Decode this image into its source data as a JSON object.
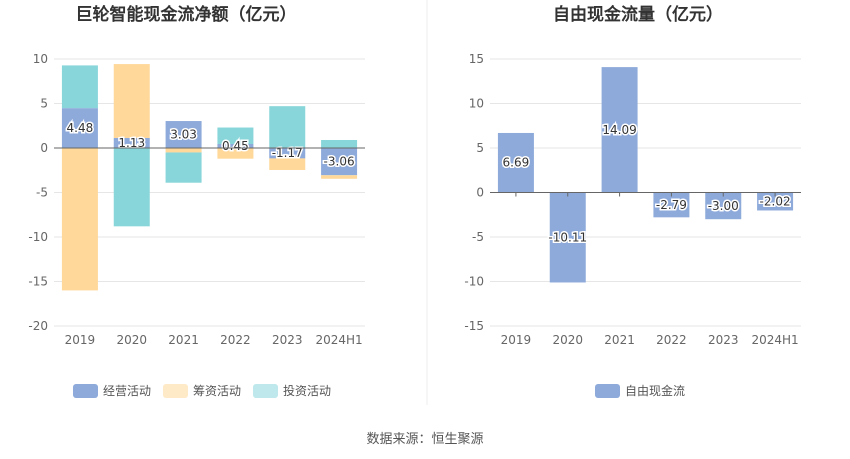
{
  "chart_data": [
    {
      "type": "bar",
      "stacked": true,
      "title": "巨轮智能现金流净额（亿元）",
      "categories": [
        "2019",
        "2020",
        "2021",
        "2022",
        "2023",
        "2024H1"
      ],
      "ylim": [
        -20,
        10
      ],
      "yticks": [
        10,
        5,
        0,
        -5,
        -10,
        -15,
        -20
      ],
      "grid": true,
      "legend_position": "bottom",
      "series": [
        {
          "name": "经营活动",
          "color": "#8eaadb",
          "values": [
            4.48,
            1.13,
            3.03,
            0.45,
            -1.17,
            -3.06
          ]
        },
        {
          "name": "筹资活动",
          "color": "#ffd89a",
          "values": [
            -16.0,
            8.3,
            -0.5,
            -1.2,
            -1.3,
            -0.4
          ]
        },
        {
          "name": "投资活动",
          "color": "#88d6da",
          "values": [
            4.8,
            -8.8,
            -3.4,
            1.85,
            4.7,
            0.9
          ]
        }
      ],
      "labels": [
        "4.48",
        "1.13",
        "3.03",
        "0.45",
        "-1.17",
        "-3.06"
      ]
    },
    {
      "type": "bar",
      "title": "自由现金流量（亿元）",
      "categories": [
        "2019",
        "2020",
        "2021",
        "2022",
        "2023",
        "2024H1"
      ],
      "ylim": [
        -15,
        15
      ],
      "yticks": [
        15,
        10,
        5,
        0,
        -5,
        -10,
        -15
      ],
      "grid": true,
      "legend_position": "bottom",
      "series": [
        {
          "name": "自由现金流",
          "color": "#8eaadb",
          "values": [
            6.69,
            -10.11,
            14.09,
            -2.79,
            -3.0,
            -2.02
          ]
        }
      ],
      "labels": [
        "6.69",
        "-10.11",
        "14.09",
        "-2.79",
        "-3.00",
        "-2.02"
      ]
    }
  ],
  "source": "数据来源：恒生聚源"
}
